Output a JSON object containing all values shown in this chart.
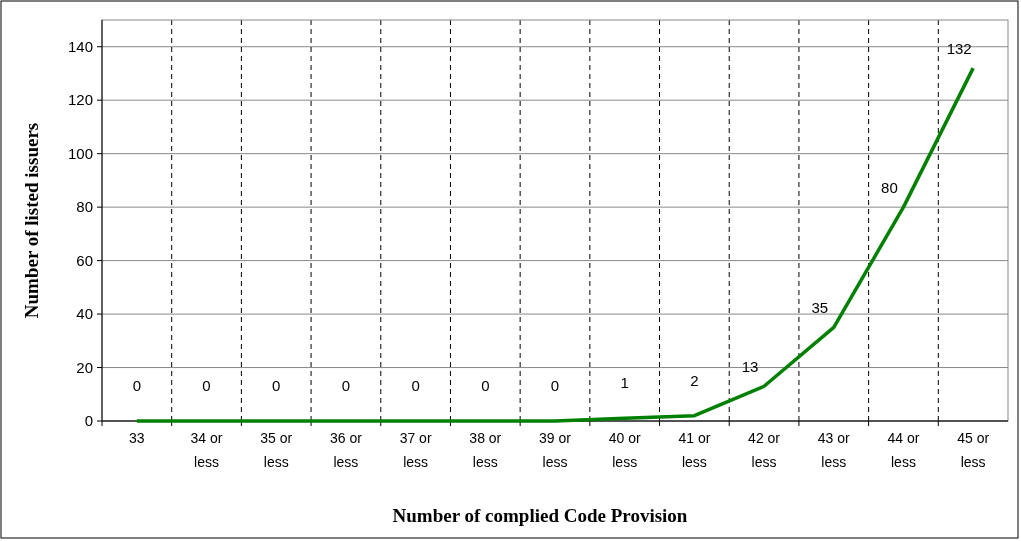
{
  "chart_data": {
    "type": "line",
    "xlabel": "Number of complied Code Provision",
    "ylabel": "Number of listed issuers",
    "categories": [
      "33",
      "34 or less",
      "35 or less",
      "36 or less",
      "37 or less",
      "38 or less",
      "39 or less",
      "40 or less",
      "41 or less",
      "42 or less",
      "43 or less",
      "44 or less",
      "45 or less"
    ],
    "series": [
      {
        "color": "#008000",
        "values": [
          0,
          0,
          0,
          0,
          0,
          0,
          0,
          1,
          2,
          13,
          35,
          80,
          132
        ]
      }
    ],
    "ylim": [
      0,
      150
    ],
    "yticks": [
      0,
      20,
      40,
      60,
      80,
      100,
      120,
      140
    ],
    "grid": true,
    "data_labels": true,
    "marker": "none",
    "line_style": "solid"
  }
}
